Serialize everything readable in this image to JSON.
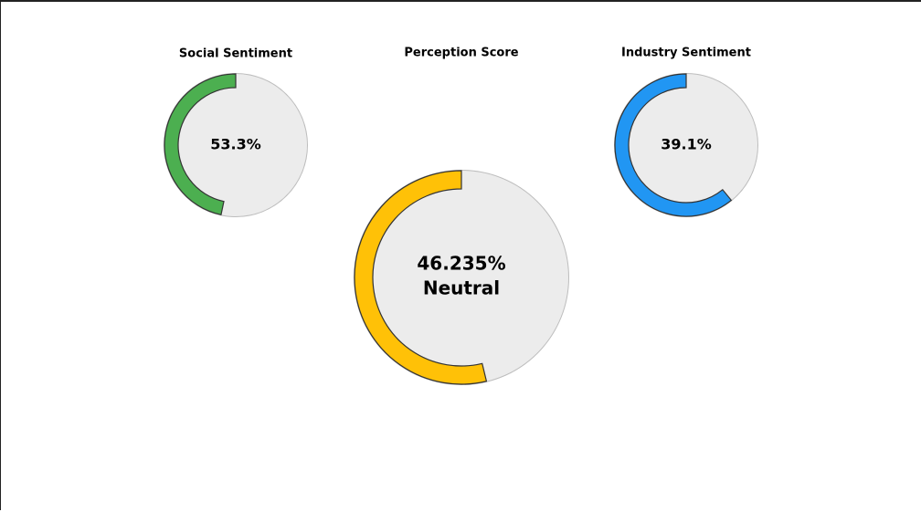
{
  "chart_data": [
    {
      "type": "gauge",
      "title": "Social Sentiment",
      "value": 53.3,
      "value_label": "53.3%",
      "color": "#4caf50",
      "ylim": [
        0,
        100
      ]
    },
    {
      "type": "gauge",
      "title": "Perception Score",
      "value": 46.235,
      "value_label": "46.235%",
      "label": "Neutral",
      "color": "#ffc107",
      "ylim": [
        0,
        100
      ]
    },
    {
      "type": "gauge",
      "title": "Industry Sentiment",
      "value": 39.1,
      "value_label": "39.1%",
      "color": "#2196f3",
      "ylim": [
        0,
        100
      ]
    }
  ]
}
